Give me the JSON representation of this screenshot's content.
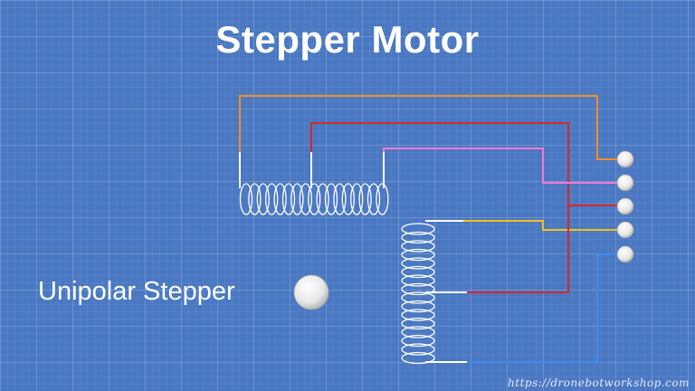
{
  "diagram": {
    "title": "Stepper Motor",
    "label": "Unipolar Stepper",
    "credit": "https://dronebotworkshop.com",
    "wire_colors": {
      "orange": "#f0902a",
      "red": "#d62828",
      "pink": "#f27ad8",
      "yellow": "#f2c21e",
      "blue": "#3f8cf0",
      "coil": "#ffffff"
    }
  }
}
